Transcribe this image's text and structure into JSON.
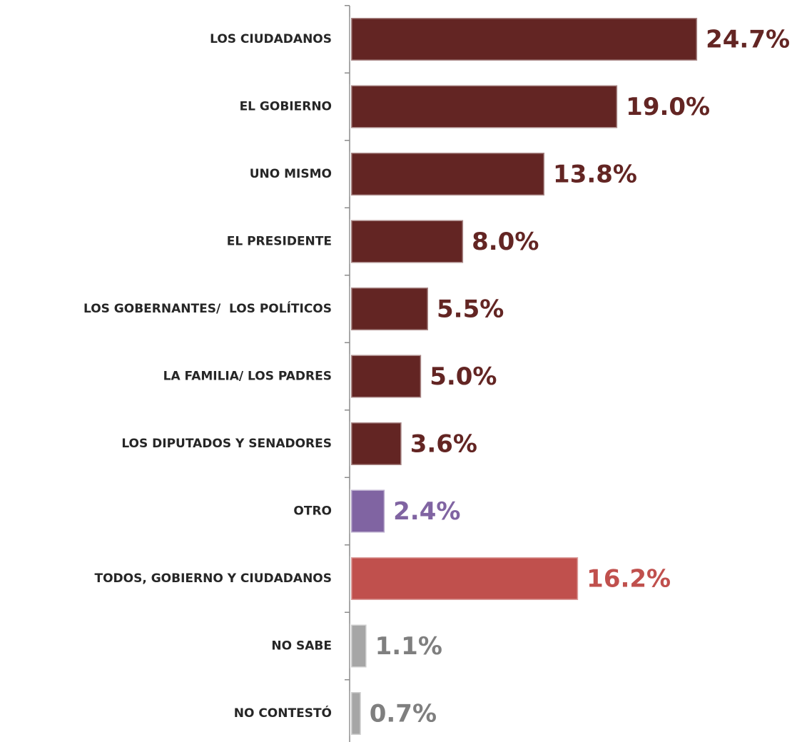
{
  "chart_data": {
    "type": "bar",
    "orientation": "horizontal",
    "categories": [
      "LOS CIUDADANOS",
      "EL GOBIERNO",
      "UNO MISMO",
      "EL PRESIDENTE",
      "LOS GOBERNANTES/  LOS POLÍTICOS",
      "LA FAMILIA/ LOS PADRES",
      "LOS DIPUTADOS Y SENADORES",
      "OTRO",
      "TODOS, GOBIERNO Y CIUDADANOS",
      "NO SABE",
      "NO CONTESTÓ"
    ],
    "values": [
      24.7,
      19.0,
      13.8,
      8.0,
      5.5,
      5.0,
      3.6,
      2.4,
      16.2,
      1.1,
      0.7
    ],
    "value_labels": [
      "24.7%",
      "19.0%",
      "13.8%",
      "8.0%",
      "5.5%",
      "5.0%",
      "3.6%",
      "2.4%",
      "16.2%",
      "1.1%",
      "0.7%"
    ],
    "colors": [
      "#632523",
      "#632523",
      "#632523",
      "#632523",
      "#632523",
      "#632523",
      "#632523",
      "#8064a2",
      "#c0504d",
      "#a6a6a6",
      "#a6a6a6"
    ]
  }
}
